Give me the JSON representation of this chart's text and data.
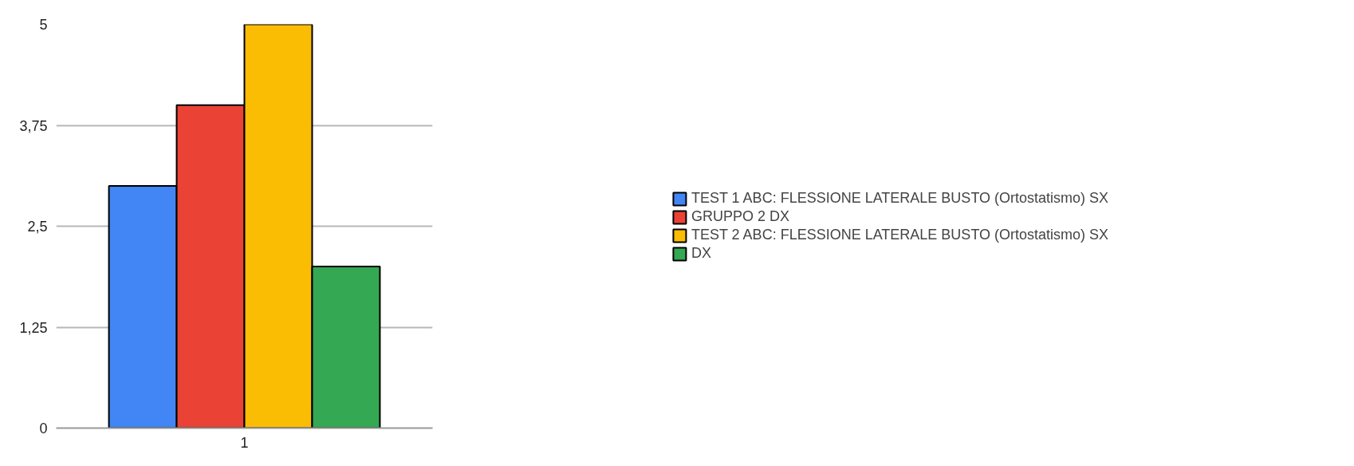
{
  "chart_data": {
    "type": "bar",
    "categories": [
      "1"
    ],
    "series": [
      {
        "name": "TEST 1 ABC: FLESSIONE LATERALE BUSTO (Ortostatismo) SX",
        "color": "#4285f4",
        "values": [
          3
        ]
      },
      {
        "name": "GRUPPO 2 DX",
        "color": "#ea4335",
        "values": [
          4
        ]
      },
      {
        "name": "TEST 2 ABC: FLESSIONE LATERALE BUSTO (Ortostatismo) SX",
        "color": "#fbbc04",
        "values": [
          5
        ]
      },
      {
        "name": "DX",
        "color": "#34a853",
        "values": [
          2
        ]
      }
    ],
    "ylim": [
      0,
      5
    ],
    "yticks": [
      0,
      {
        "value": 1.25,
        "label": "1,25"
      },
      {
        "value": 2.5,
        "label": "2,5"
      },
      {
        "value": 3.75,
        "label": "3,75"
      },
      5
    ],
    "grid": "y",
    "legend": "right"
  }
}
